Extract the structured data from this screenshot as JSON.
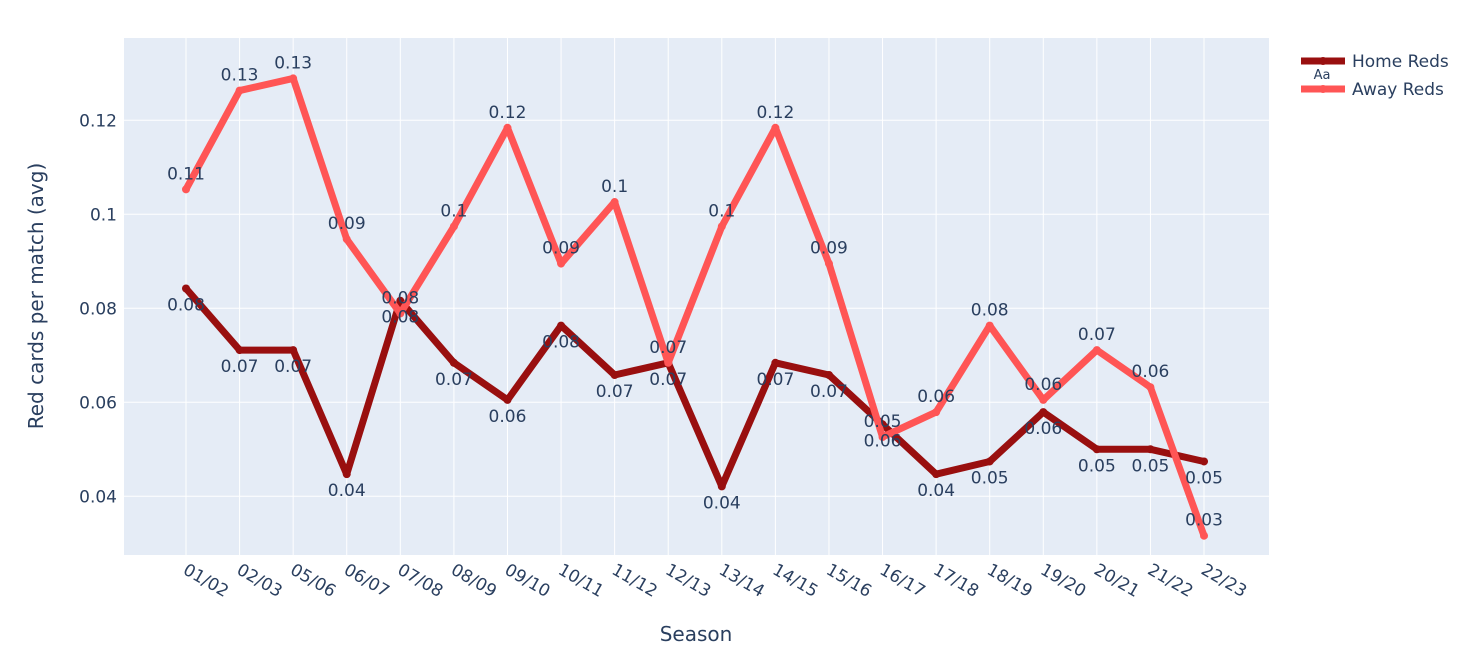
{
  "chart_data": {
    "type": "line",
    "xlabel": "Season",
    "ylabel": "Red cards per match (avg)",
    "categories": [
      "01/02",
      "02/03",
      "05/06",
      "06/07",
      "07/08",
      "08/09",
      "09/10",
      "10/11",
      "11/12",
      "12/13",
      "13/14",
      "14/15",
      "15/16",
      "16/17",
      "17/18",
      "18/19",
      "19/20",
      "20/21",
      "21/22",
      "22/23"
    ],
    "ylim": [
      0.0275,
      0.1375
    ],
    "yticks": [
      0.04,
      0.06,
      0.08,
      0.1,
      0.12
    ],
    "ytick_labels": [
      "0.04",
      "0.06",
      "0.08",
      "0.1",
      "0.12"
    ],
    "grid": true,
    "legend_position": "top-right",
    "legend_marker_text": "Aa",
    "series": [
      {
        "name": "Home Reds",
        "color": "#990F0F",
        "label_position": "below",
        "values": [
          0.0842,
          0.0711,
          0.0711,
          0.0447,
          0.0816,
          0.0684,
          0.0605,
          0.0763,
          0.0658,
          0.0684,
          0.0421,
          0.0684,
          0.0658,
          0.0553,
          0.0447,
          0.0474,
          0.0579,
          0.05,
          0.05,
          0.0474
        ],
        "data_labels": [
          "0.08",
          "0.07",
          "0.07",
          "0.04",
          "0.08",
          "0.07",
          "0.06",
          "0.08",
          "0.07",
          "0.07",
          "0.04",
          "0.07",
          "0.07",
          "0.06",
          "0.04",
          "0.05",
          "0.06",
          "0.05",
          "0.05",
          "0.05"
        ]
      },
      {
        "name": "Away Reds",
        "color": "#FF5555",
        "label_position": "above",
        "values": [
          0.1053,
          0.1263,
          0.1289,
          0.0947,
          0.0789,
          0.0974,
          0.1184,
          0.0895,
          0.1026,
          0.0684,
          0.0974,
          0.1184,
          0.0895,
          0.0526,
          0.0579,
          0.0763,
          0.0605,
          0.0711,
          0.0632,
          0.0316
        ],
        "data_labels": [
          "0.11",
          "0.13",
          "0.13",
          "0.09",
          "0.08",
          "0.1",
          "0.12",
          "0.09",
          "0.1",
          "0.07",
          "0.1",
          "0.12",
          "0.09",
          "0.05",
          "0.06",
          "0.08",
          "0.06",
          "0.07",
          "0.06",
          "0.03"
        ]
      }
    ]
  }
}
